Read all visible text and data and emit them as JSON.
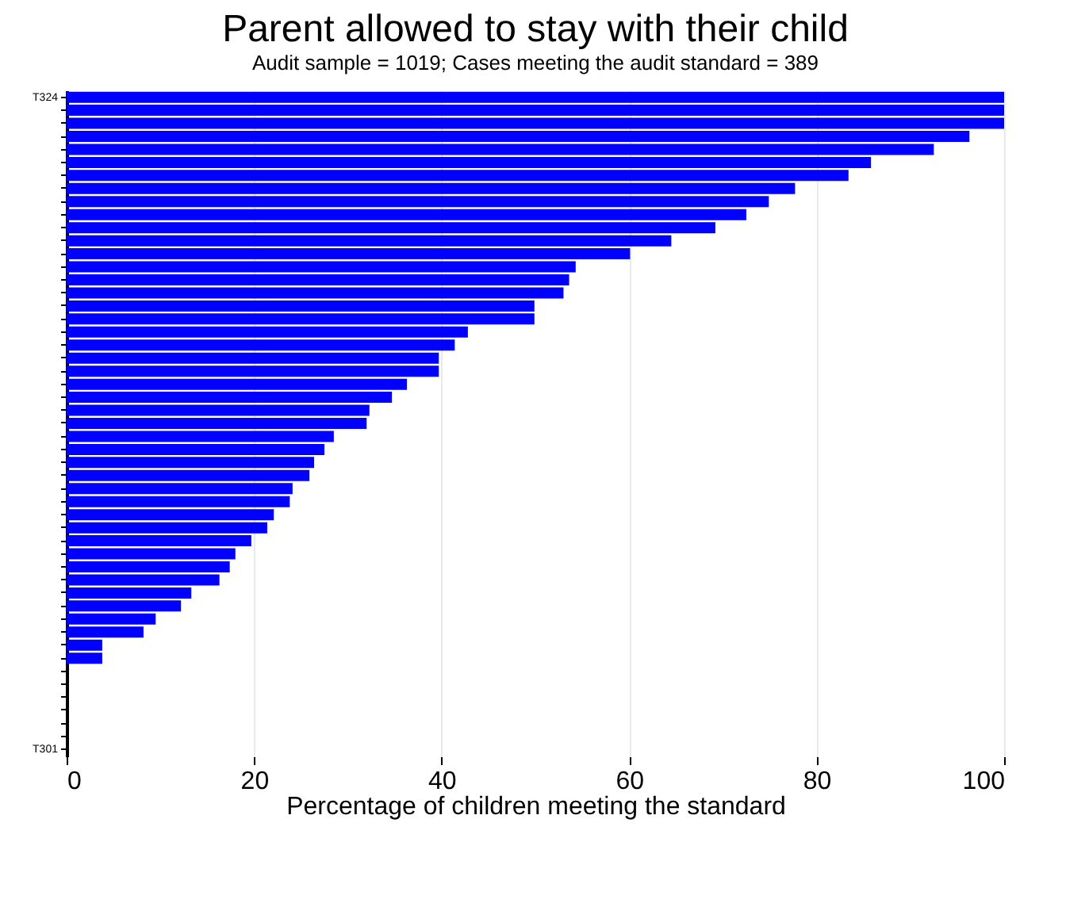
{
  "chart_data": {
    "type": "bar",
    "orientation": "horizontal",
    "title": "Parent allowed to stay with their child",
    "subtitle": "Audit sample = 1019; Cases meeting the audit standard = 389",
    "xlabel": "Percentage of children meeting the standard",
    "categories": [
      "T324",
      null,
      null,
      null,
      null,
      null,
      null,
      null,
      null,
      null,
      null,
      null,
      null,
      null,
      null,
      null,
      null,
      null,
      null,
      null,
      null,
      null,
      null,
      null,
      null,
      null,
      null,
      null,
      null,
      null,
      null,
      null,
      null,
      null,
      null,
      null,
      null,
      null,
      null,
      null,
      null,
      null,
      null,
      null,
      null,
      null,
      null,
      null,
      null,
      null,
      "T301"
    ],
    "series": [
      {
        "color": "#0000ff",
        "values": [
          100,
          100,
          100,
          96.3,
          92.5,
          85.8,
          83.4,
          77.7,
          74.9,
          72.5,
          69.2,
          64.5,
          60.1,
          54.3,
          53.6,
          53.0,
          49.9,
          49.9,
          42.8,
          41.4,
          39.7,
          39.7,
          36.3,
          34.7,
          32.3,
          32.0,
          28.5,
          27.5,
          26.4,
          25.9,
          24.1,
          23.8,
          22.1,
          21.4,
          19.7,
          18.0,
          17.4,
          16.3,
          13.3,
          12.2,
          9.5,
          8.2,
          3.8,
          3.8,
          0,
          0,
          0,
          0,
          0,
          0,
          0
        ]
      }
    ],
    "xlim": [
      0,
      100
    ],
    "xticks": [
      0,
      20,
      40,
      60,
      80,
      100
    ],
    "grid": "x",
    "legend": false
  }
}
